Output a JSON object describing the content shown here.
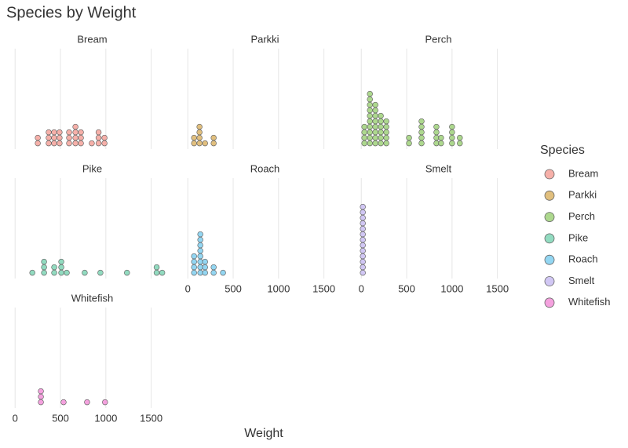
{
  "chart_data": {
    "type": "dotplot",
    "title": "Species by Weight",
    "x_label": "Weight",
    "legend_title": "Species",
    "xlim": [
      -80,
      1780
    ],
    "xticks": [
      0,
      500,
      1000,
      1500
    ],
    "grid": true,
    "facets": [
      {
        "name": "Bream",
        "color": "#f4a29a",
        "x": [
          250,
          370,
          430,
          490,
          595,
          665,
          725,
          845,
          920,
          985
        ],
        "values": [
          2,
          3,
          3,
          3,
          3,
          4,
          3,
          1,
          3,
          2
        ]
      },
      {
        "name": "Parkki",
        "color": "#dcb467",
        "x": [
          69,
          129,
          190,
          285
        ],
        "values": [
          2,
          4,
          1,
          2
        ]
      },
      {
        "name": "Perch",
        "color": "#9fd17a",
        "x": [
          34,
          95,
          155,
          215,
          276,
          526,
          664,
          828,
          879,
          1000,
          1086
        ],
        "values": [
          4,
          10,
          8,
          6,
          5,
          2,
          5,
          4,
          2,
          4,
          2
        ]
      },
      {
        "name": "Pike",
        "color": "#7fd5b5",
        "x": [
          190,
          319,
          431,
          509,
          569,
          767,
          940,
          1233,
          1560,
          1621
        ],
        "values": [
          1,
          3,
          2,
          3,
          1,
          1,
          1,
          1,
          2,
          1
        ]
      },
      {
        "name": "Roach",
        "color": "#80cff0",
        "x": [
          69,
          138,
          190,
          285,
          388
        ],
        "values": [
          4,
          8,
          3,
          2,
          1
        ]
      },
      {
        "name": "Smelt",
        "color": "#c9bdf2",
        "x": [
          17
        ],
        "values": [
          13
        ]
      },
      {
        "name": "Whitefish",
        "color": "#f291d8",
        "x": [
          284,
          534,
          793,
          991
        ],
        "values": [
          3,
          1,
          1,
          1
        ]
      }
    ]
  }
}
